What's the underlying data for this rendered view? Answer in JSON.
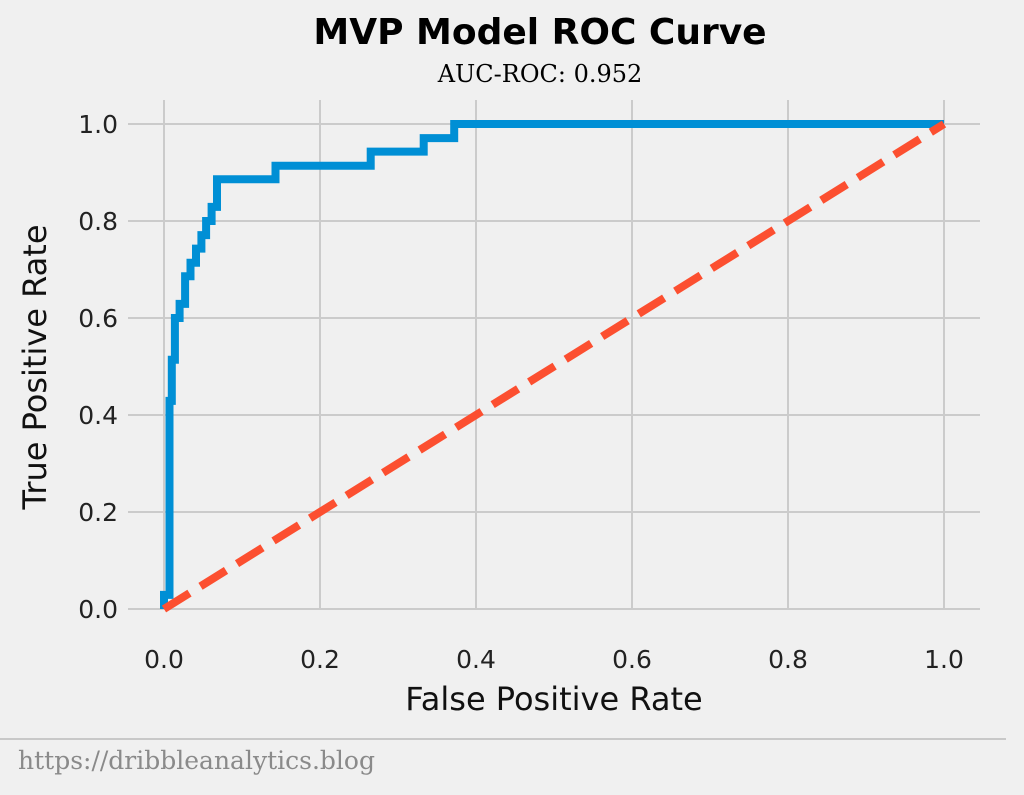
{
  "chart_data": {
    "type": "line",
    "title": "MVP Model ROC Curve",
    "subtitle": "AUC-ROC: 0.952",
    "xlabel": "False Positive Rate",
    "ylabel": "True Positive Rate",
    "xlim": [
      0.0,
      1.0
    ],
    "ylim": [
      0.0,
      1.0
    ],
    "x_ticks": [
      "0.0",
      "0.2",
      "0.4",
      "0.6",
      "0.8",
      "1.0"
    ],
    "y_ticks": [
      "0.0",
      "0.2",
      "0.4",
      "0.6",
      "0.8",
      "1.0"
    ],
    "grid": true,
    "series": [
      {
        "x": [
          0.0,
          0.0,
          0.007,
          0.007,
          0.01,
          0.01,
          0.014,
          0.014,
          0.02,
          0.02,
          0.027,
          0.027,
          0.034,
          0.034,
          0.041,
          0.041,
          0.048,
          0.048,
          0.054,
          0.054,
          0.061,
          0.061,
          0.068,
          0.068,
          0.143,
          0.143,
          0.265,
          0.265,
          0.333,
          0.333,
          0.372,
          0.372,
          1.0
        ],
        "y": [
          0.0,
          0.029,
          0.029,
          0.429,
          0.429,
          0.514,
          0.514,
          0.6,
          0.6,
          0.629,
          0.629,
          0.686,
          0.686,
          0.714,
          0.714,
          0.743,
          0.743,
          0.771,
          0.771,
          0.8,
          0.8,
          0.829,
          0.829,
          0.886,
          0.886,
          0.914,
          0.914,
          0.943,
          0.943,
          0.971,
          0.971,
          1.0,
          1.0
        ],
        "color": "#008fd5"
      },
      {
        "x": [
          0.0,
          1.0
        ],
        "y": [
          0.0,
          1.0
        ],
        "color": "#fc4f30",
        "style": "dashed"
      }
    ]
  },
  "footer": {
    "url": "https://dribbleanalytics.blog"
  }
}
